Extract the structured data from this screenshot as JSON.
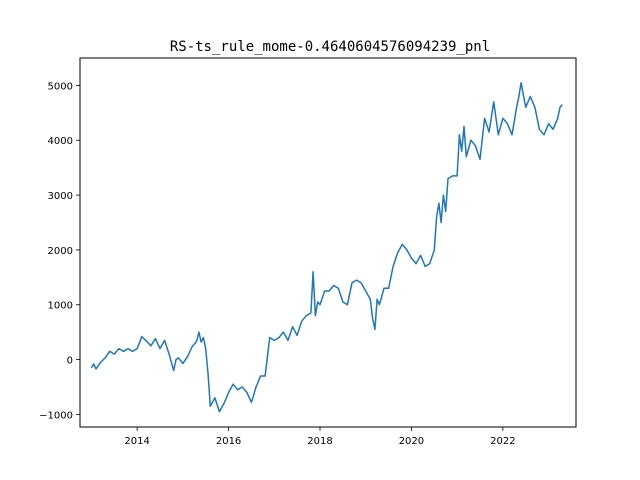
{
  "chart_data": {
    "type": "line",
    "title": "RS-ts_rule_mome-0.4640604576094239_pnl",
    "xlabel": "",
    "ylabel": "",
    "xlim": [
      2012.75,
      2023.6
    ],
    "ylim": [
      -1230,
      5500
    ],
    "x_ticks": [
      2014,
      2016,
      2018,
      2020,
      2022
    ],
    "x_tick_labels": [
      "2014",
      "2016",
      "2018",
      "2020",
      "2022"
    ],
    "y_ticks": [
      -1000,
      0,
      1000,
      2000,
      3000,
      4000,
      5000
    ],
    "y_tick_labels": [
      "−1000",
      "0",
      "1000",
      "2000",
      "3000",
      "4000",
      "5000"
    ],
    "grid": false,
    "line_color": "#1f77b4",
    "series": [
      {
        "name": "",
        "x": [
          2013.0,
          2013.05,
          2013.1,
          2013.2,
          2013.3,
          2013.4,
          2013.5,
          2013.6,
          2013.7,
          2013.8,
          2013.9,
          2014.0,
          2014.05,
          2014.1,
          2014.2,
          2014.3,
          2014.4,
          2014.5,
          2014.6,
          2014.7,
          2014.8,
          2014.85,
          2014.9,
          2015.0,
          2015.1,
          2015.2,
          2015.3,
          2015.35,
          2015.4,
          2015.45,
          2015.5,
          2015.55,
          2015.6,
          2015.7,
          2015.8,
          2015.9,
          2016.0,
          2016.1,
          2016.2,
          2016.3,
          2016.4,
          2016.5,
          2016.55,
          2016.6,
          2016.7,
          2016.8,
          2016.9,
          2017.0,
          2017.1,
          2017.2,
          2017.3,
          2017.4,
          2017.5,
          2017.6,
          2017.7,
          2017.8,
          2017.85,
          2017.9,
          2017.95,
          2018.0,
          2018.1,
          2018.2,
          2018.3,
          2018.4,
          2018.5,
          2018.6,
          2018.7,
          2018.8,
          2018.9,
          2019.0,
          2019.1,
          2019.15,
          2019.2,
          2019.25,
          2019.3,
          2019.4,
          2019.5,
          2019.6,
          2019.7,
          2019.8,
          2019.9,
          2020.0,
          2020.1,
          2020.2,
          2020.3,
          2020.4,
          2020.5,
          2020.55,
          2020.6,
          2020.65,
          2020.7,
          2020.75,
          2020.8,
          2020.9,
          2021.0,
          2021.05,
          2021.1,
          2021.15,
          2021.2,
          2021.3,
          2021.4,
          2021.5,
          2021.6,
          2021.7,
          2021.8,
          2021.9,
          2022.0,
          2022.1,
          2022.2,
          2022.3,
          2022.35,
          2022.4,
          2022.5,
          2022.6,
          2022.7,
          2022.8,
          2022.9,
          2023.0,
          2023.1,
          2023.2,
          2023.25,
          2023.3
        ],
        "y": [
          -150,
          -80,
          -170,
          -50,
          30,
          150,
          100,
          200,
          150,
          200,
          150,
          200,
          300,
          420,
          340,
          250,
          380,
          200,
          350,
          100,
          -200,
          0,
          30,
          -70,
          50,
          230,
          330,
          500,
          320,
          400,
          200,
          -250,
          -850,
          -700,
          -950,
          -800,
          -600,
          -450,
          -550,
          -500,
          -600,
          -780,
          -650,
          -500,
          -300,
          -300,
          400,
          350,
          400,
          500,
          350,
          600,
          440,
          700,
          800,
          850,
          1600,
          800,
          1050,
          1000,
          1250,
          1250,
          1350,
          1300,
          1050,
          1000,
          1400,
          1450,
          1400,
          1250,
          1100,
          750,
          550,
          1100,
          1000,
          1300,
          1300,
          1700,
          1950,
          2100,
          2000,
          1850,
          1750,
          1900,
          1700,
          1750,
          2000,
          2600,
          2850,
          2500,
          3000,
          2700,
          3300,
          3350,
          3350,
          4100,
          3800,
          4250,
          3700,
          4000,
          3900,
          3650,
          4400,
          4150,
          4700,
          4100,
          4400,
          4300,
          4100,
          4600,
          4800,
          5050,
          4600,
          4800,
          4600,
          4200,
          4100,
          4300,
          4200,
          4400,
          4600,
          4650
        ]
      }
    ]
  }
}
